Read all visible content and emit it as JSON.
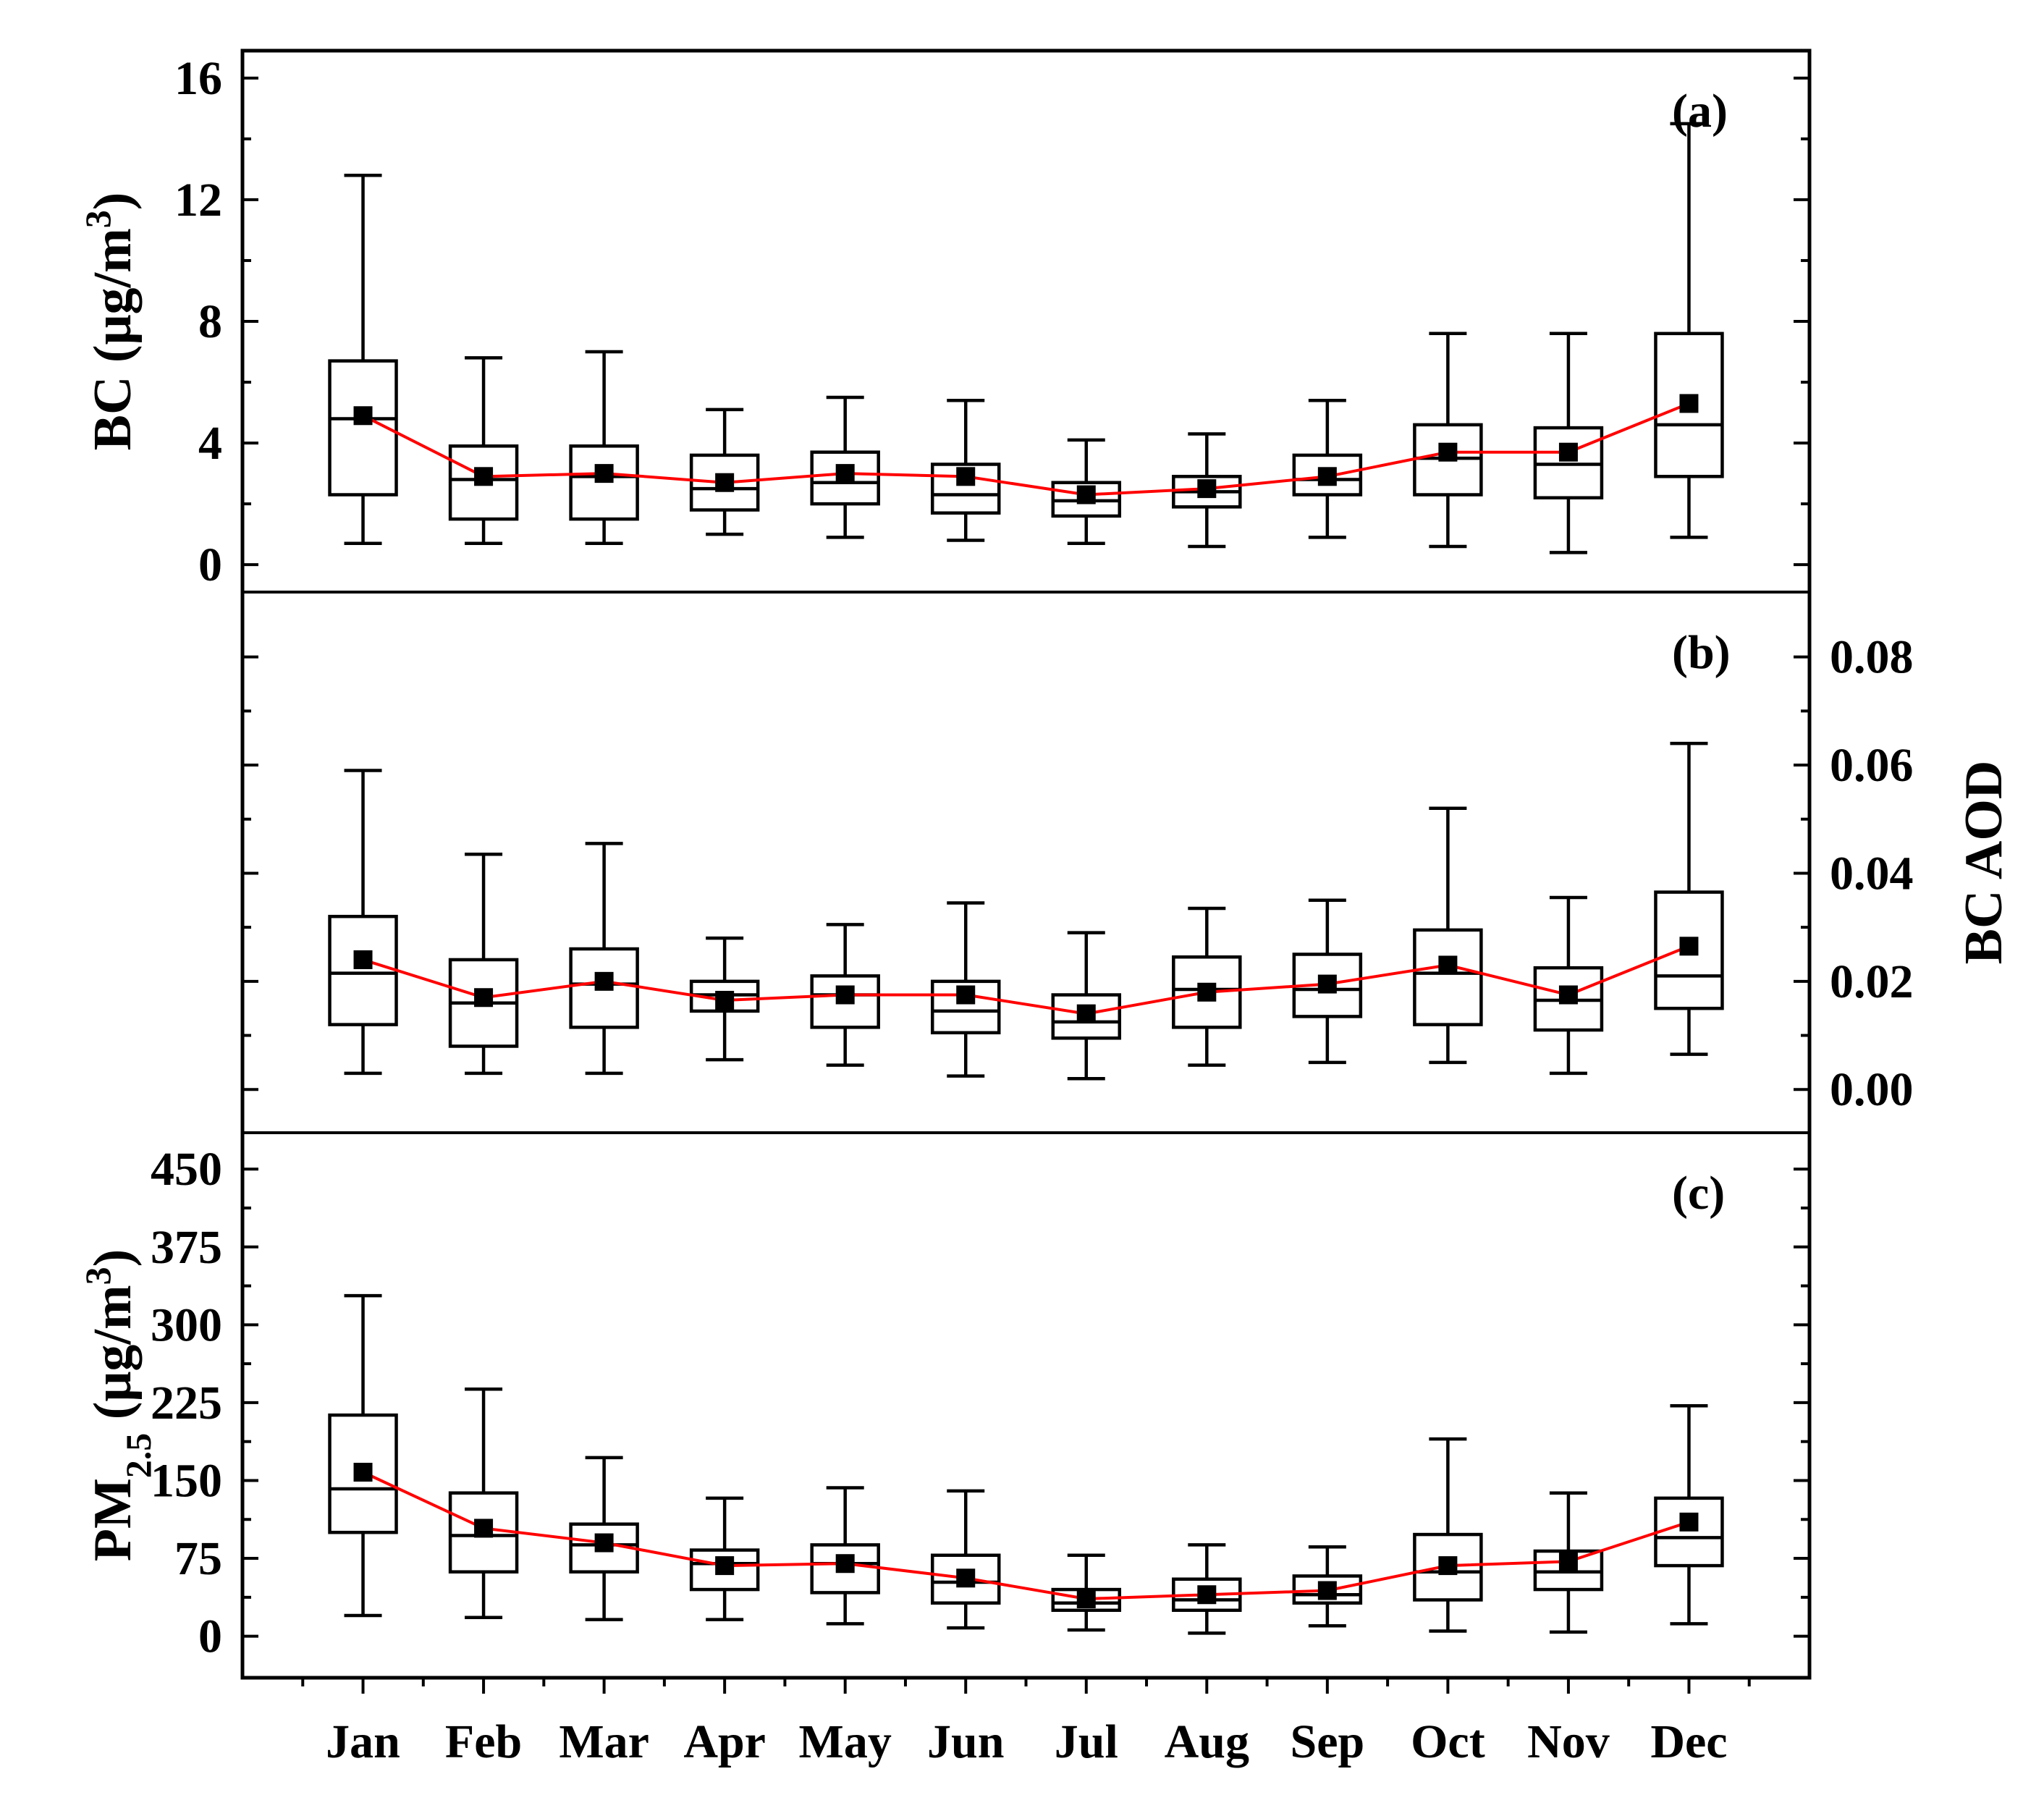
{
  "chart_data": {
    "type": "boxplot",
    "categories": [
      "Jan",
      "Feb",
      "Mar",
      "Apr",
      "May",
      "Jun",
      "Jul",
      "Aug",
      "Sep",
      "Oct",
      "Nov",
      "Dec"
    ],
    "panels": [
      {
        "id": "a",
        "label": "(a)",
        "axis_side": "left",
        "ylabel_main": "BC (μg/m",
        "ylabel_sup": "3",
        "ylabel_end": ")",
        "ylim": [
          -0.9,
          16.9
        ],
        "ticks": [
          0,
          4,
          8,
          12,
          16
        ],
        "tick_labels": [
          "0",
          "4",
          "8",
          "12",
          "16"
        ],
        "series": {
          "whisker_low": [
            0.7,
            0.7,
            0.7,
            1.0,
            0.9,
            0.8,
            0.7,
            0.6,
            0.9,
            0.6,
            0.4,
            0.9
          ],
          "q1": [
            2.3,
            1.5,
            1.5,
            1.8,
            2.0,
            1.7,
            1.6,
            1.9,
            2.3,
            2.3,
            2.2,
            2.9
          ],
          "median": [
            4.8,
            2.8,
            2.9,
            2.5,
            2.7,
            2.3,
            2.1,
            2.4,
            2.8,
            3.5,
            3.3,
            4.6
          ],
          "q3": [
            6.7,
            3.9,
            3.9,
            3.6,
            3.7,
            3.3,
            2.7,
            2.9,
            3.6,
            4.6,
            4.5,
            7.6
          ],
          "whisker_high": [
            12.8,
            6.8,
            7.0,
            5.1,
            5.5,
            5.4,
            4.1,
            4.3,
            5.4,
            7.6,
            7.6,
            14.5
          ],
          "mean": [
            4.9,
            2.9,
            3.0,
            2.7,
            3.0,
            2.9,
            2.3,
            2.5,
            2.9,
            3.7,
            3.7,
            5.3
          ]
        }
      },
      {
        "id": "b",
        "label": "(b)",
        "axis_side": "right",
        "ylabel_main": "BC AOD",
        "ylabel_sup": "",
        "ylabel_end": "",
        "ylim": [
          -0.008,
          0.092
        ],
        "ticks": [
          0.0,
          0.02,
          0.04,
          0.06,
          0.08
        ],
        "tick_labels": [
          "0.00",
          "0.02",
          "0.04",
          "0.06",
          "0.08"
        ],
        "series": {
          "whisker_low": [
            0.003,
            0.003,
            0.003,
            0.0055,
            0.0045,
            0.0025,
            0.002,
            0.0045,
            0.005,
            0.005,
            0.003,
            0.0065
          ],
          "q1": [
            0.012,
            0.008,
            0.0115,
            0.0145,
            0.0115,
            0.0105,
            0.0095,
            0.0115,
            0.0135,
            0.012,
            0.011,
            0.015
          ],
          "median": [
            0.0215,
            0.016,
            0.0195,
            0.0175,
            0.0175,
            0.0145,
            0.0125,
            0.0185,
            0.0185,
            0.0215,
            0.0165,
            0.021
          ],
          "q3": [
            0.032,
            0.024,
            0.026,
            0.02,
            0.021,
            0.02,
            0.0175,
            0.0245,
            0.025,
            0.0295,
            0.0225,
            0.0365
          ],
          "whisker_high": [
            0.059,
            0.0435,
            0.0455,
            0.028,
            0.0305,
            0.0345,
            0.029,
            0.0335,
            0.035,
            0.052,
            0.0355,
            0.064
          ],
          "mean": [
            0.024,
            0.017,
            0.02,
            0.0165,
            0.0175,
            0.0175,
            0.014,
            0.018,
            0.0195,
            0.023,
            0.0175,
            0.0265
          ]
        }
      },
      {
        "id": "c",
        "label": "(c)",
        "axis_side": "left",
        "ylabel_main": "PM",
        "ylabel_sub": "2.5",
        "ylabel_tail": " (μg/m",
        "ylabel_sup": "3",
        "ylabel_end": ")",
        "ylim": [
          -40,
          485
        ],
        "ticks": [
          0,
          75,
          150,
          225,
          300,
          375,
          450
        ],
        "tick_labels": [
          "0",
          "75",
          "150",
          "225",
          "300",
          "375",
          "450"
        ],
        "series": {
          "whisker_low": [
            20,
            18,
            16,
            16,
            12,
            8,
            6,
            3,
            10,
            5,
            4,
            12
          ],
          "q1": [
            100,
            62,
            62,
            45,
            42,
            32,
            25,
            25,
            32,
            35,
            45,
            68
          ],
          "median": [
            142,
            97,
            88,
            70,
            70,
            52,
            32,
            35,
            40,
            62,
            62,
            95
          ],
          "q3": [
            213,
            138,
            108,
            83,
            88,
            78,
            45,
            55,
            58,
            98,
            82,
            133
          ],
          "whisker_high": [
            328,
            238,
            172,
            133,
            143,
            140,
            78,
            88,
            86,
            190,
            138,
            222
          ],
          "mean": [
            158,
            104,
            90,
            68,
            70,
            56,
            36,
            40,
            44,
            68,
            72,
            110
          ]
        }
      }
    ],
    "colors": {
      "mean_line": "#ff0000",
      "boxes": "#000000",
      "mean_marker": "#000000"
    }
  }
}
